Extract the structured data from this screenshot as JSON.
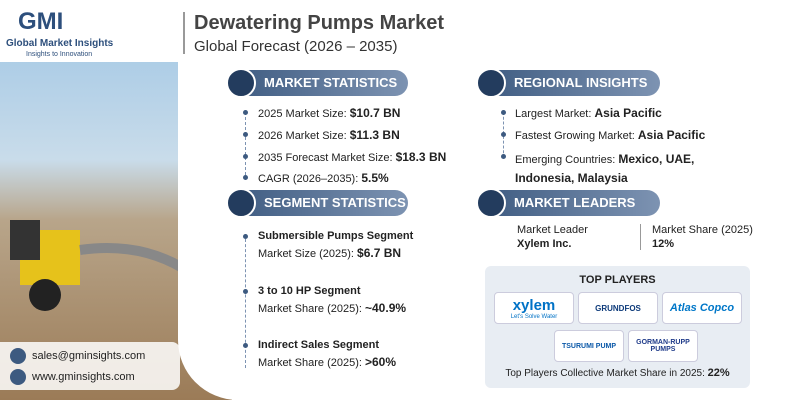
{
  "logo": {
    "mark": "GMI",
    "name": "Global Market Insights",
    "tagline": "Insights to Innovation"
  },
  "header": {
    "title": "Dewatering Pumps Market",
    "subtitle": "Global Forecast (2026 – 2035)"
  },
  "market_statistics": {
    "heading": "MARKET STATISTICS",
    "items": [
      {
        "label": "2025 Market Size:",
        "value": "$10.7 BN"
      },
      {
        "label": "2026 Market Size:",
        "value": "$11.3 BN"
      },
      {
        "label": "2035 Forecast Market Size:",
        "value": "$18.3 BN"
      },
      {
        "label": "CAGR (2026–2035):",
        "value": "5.5%"
      }
    ]
  },
  "segment_statistics": {
    "heading": "SEGMENT STATISTICS",
    "items": [
      {
        "segment": "Submersible Pumps Segment",
        "label": "Market Size (2025):",
        "value": "$6.7 BN"
      },
      {
        "segment": "3 to 10 HP Segment",
        "label": "Market Share (2025):",
        "value": "~40.9%"
      },
      {
        "segment": "Indirect Sales Segment",
        "label": "Market Share (2025):",
        "value": ">60%"
      }
    ]
  },
  "regional_insights": {
    "heading": "REGIONAL INSIGHTS",
    "items": [
      {
        "label": "Largest Market:",
        "value": "Asia Pacific"
      },
      {
        "label": "Fastest Growing Market:",
        "value": "Asia Pacific"
      },
      {
        "label": "Emerging Countries:",
        "value": "Mexico, UAE, Indonesia, Malaysia"
      }
    ]
  },
  "market_leaders": {
    "heading": "MARKET LEADERS",
    "leader_label": "Market Leader",
    "leader": "Xylem Inc.",
    "share_label": "Market Share (2025)",
    "share": "12%"
  },
  "top_players": {
    "heading": "TOP PLAYERS",
    "logos": [
      "xylem",
      "Let's Solve Water",
      "GRUNDFOS",
      "Atlas Copco",
      "TSURUMI PUMP",
      "GORMAN-RUPP PUMPS"
    ],
    "footer_label": "Top Players Collective Market Share in 2025:",
    "footer_value": "22%"
  },
  "contact": {
    "email": "sales@gminsights.com",
    "website": "www.gminsights.com"
  }
}
